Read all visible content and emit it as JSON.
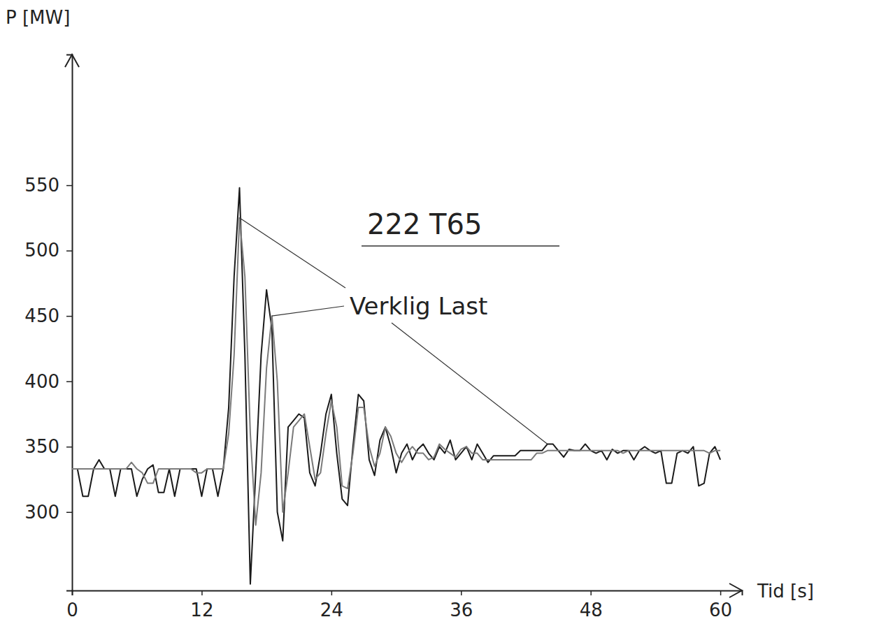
{
  "chart_data": {
    "type": "line",
    "title": "222 T65",
    "annotation": "Verklig Last",
    "x_label": "Tid [s]",
    "y_label": "P [MW]",
    "xlim": [
      0,
      62
    ],
    "ylim": [
      240,
      650
    ],
    "xticks": [
      0,
      12,
      24,
      36,
      48,
      60
    ],
    "yticks": [
      300,
      350,
      400,
      450,
      500,
      550
    ],
    "grid": false,
    "x": [
      0,
      0.5,
      1,
      1.5,
      2,
      2.5,
      3,
      3.5,
      4,
      4.5,
      5,
      5.5,
      6,
      6.5,
      7,
      7.5,
      8,
      8.5,
      9,
      9.5,
      10,
      10.5,
      11,
      11.5,
      12,
      12.5,
      13,
      13.5,
      14,
      14.5,
      15,
      15.5,
      16,
      16.5,
      17,
      17.5,
      18,
      18.5,
      19,
      19.5,
      20,
      20.5,
      21,
      21.5,
      22,
      22.5,
      23,
      23.5,
      24,
      24.5,
      25,
      25.5,
      26,
      26.5,
      27,
      27.5,
      28,
      28.5,
      29,
      29.5,
      30,
      30.5,
      31,
      31.5,
      32,
      32.5,
      33,
      33.5,
      34,
      34.5,
      35,
      35.5,
      36,
      36.5,
      37,
      37.5,
      38,
      38.5,
      39,
      39.5,
      40,
      40.5,
      41,
      41.5,
      42,
      42.5,
      43,
      43.5,
      44,
      44.5,
      45,
      45.5,
      46,
      46.5,
      47,
      47.5,
      48,
      48.5,
      49,
      49.5,
      50,
      50.5,
      51,
      51.5,
      52,
      52.5,
      53,
      53.5,
      54,
      54.5,
      55,
      55.5,
      56,
      56.5,
      57,
      57.5,
      58,
      58.5,
      59,
      59.5,
      60
    ],
    "series": [
      {
        "color": "#1a1a1a",
        "values": [
          333,
          333,
          312,
          312,
          333,
          340,
          333,
          333,
          312,
          333,
          333,
          333,
          312,
          325,
          333,
          336,
          315,
          315,
          333,
          312,
          333,
          333,
          333,
          333,
          312,
          333,
          333,
          312,
          333,
          380,
          480,
          548,
          420,
          245,
          330,
          420,
          470,
          440,
          300,
          278,
          365,
          370,
          375,
          372,
          330,
          320,
          345,
          375,
          390,
          345,
          310,
          305,
          350,
          390,
          385,
          340,
          328,
          355,
          365,
          350,
          330,
          345,
          352,
          340,
          348,
          352,
          345,
          340,
          350,
          345,
          355,
          340,
          345,
          350,
          340,
          352,
          345,
          338,
          343,
          343,
          343,
          343,
          343,
          347,
          347,
          347,
          347,
          347,
          352,
          352,
          347,
          342,
          348,
          347,
          347,
          352,
          347,
          345,
          347,
          340,
          348,
          345,
          347,
          347,
          340,
          347,
          350,
          347,
          345,
          347,
          322,
          322,
          345,
          347,
          345,
          350,
          320,
          322,
          345,
          350,
          340
        ]
      },
      {
        "color": "#7a7a7a",
        "values": [
          333,
          333,
          333,
          333,
          333,
          333,
          333,
          333,
          333,
          333,
          333,
          338,
          333,
          330,
          322,
          322,
          333,
          333,
          333,
          333,
          333,
          333,
          333,
          330,
          330,
          333,
          333,
          333,
          333,
          360,
          420,
          525,
          480,
          360,
          290,
          330,
          410,
          450,
          400,
          300,
          330,
          365,
          370,
          375,
          350,
          325,
          330,
          360,
          385,
          365,
          320,
          318,
          345,
          380,
          380,
          350,
          335,
          345,
          365,
          358,
          345,
          338,
          345,
          350,
          345,
          345,
          340,
          342,
          352,
          348,
          345,
          342,
          348,
          350,
          345,
          345,
          340,
          340,
          340,
          340,
          340,
          340,
          340,
          340,
          340,
          340,
          345,
          345,
          347,
          347,
          347,
          347,
          347,
          347,
          347,
          347,
          347,
          347,
          347,
          347,
          347,
          347,
          345,
          347,
          347,
          347,
          347,
          347,
          347,
          347,
          347,
          347,
          347,
          347,
          347,
          347,
          347,
          347,
          345,
          347,
          347
        ]
      }
    ]
  }
}
